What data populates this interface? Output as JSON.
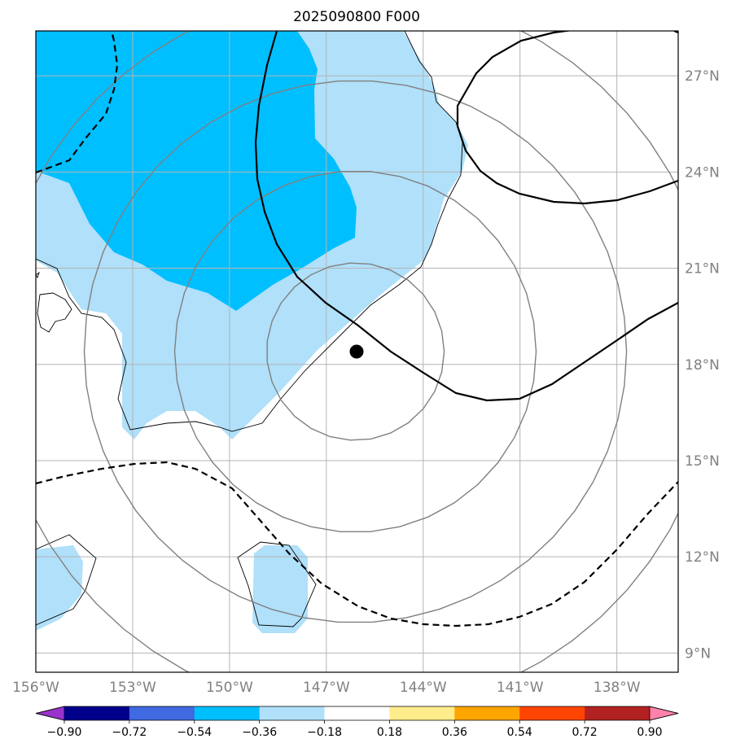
{
  "title": "2025090800 F000",
  "chart_data": {
    "type": "map",
    "projection": "lat-lon",
    "lon_range": [
      -156.0,
      -136.1
    ],
    "lat_range": [
      8.4,
      28.4
    ],
    "lon_ticks": [
      -156,
      -153,
      -150,
      -147,
      -144,
      -141,
      -138
    ],
    "lon_tick_labels": [
      "156°W",
      "153°W",
      "150°W",
      "147°W",
      "144°W",
      "141°W",
      "138°W"
    ],
    "lat_ticks": [
      9,
      12,
      15,
      18,
      21,
      24,
      27
    ],
    "lat_tick_labels": [
      "9°N",
      "12°N",
      "15°N",
      "18°N",
      "21°N",
      "24°N",
      "27°N"
    ],
    "grid": true,
    "center_marker": {
      "lon": -146.1,
      "lat": 18.4
    },
    "range_rings_deg": [
      2.75,
      5.6,
      8.4,
      11.2
    ],
    "colorbar": {
      "levels": [
        "-0.90",
        "-0.72",
        "-0.54",
        "-0.36",
        "-0.18",
        "0.18",
        "0.36",
        "0.54",
        "0.72",
        "0.90"
      ],
      "colors": [
        "#9932cc",
        "#00008b",
        "#4169e1",
        "#00bfff",
        "#b0e0fa",
        "#ffffff",
        "#ffec8b",
        "#ffa500",
        "#ff4500",
        "#b22222",
        "#ff82ab"
      ],
      "extend": "both"
    },
    "contours": [
      {
        "style": "solid",
        "sign": "positive",
        "points": [
          [
            -146.1,
            18.4
          ],
          [
            -144.8,
            18.0
          ]
        ]
      },
      {
        "style": "dashed",
        "sign": "negative",
        "points": [
          [
            -156.0,
            14.3
          ],
          [
            -150.0,
            14.2
          ]
        ]
      }
    ]
  }
}
